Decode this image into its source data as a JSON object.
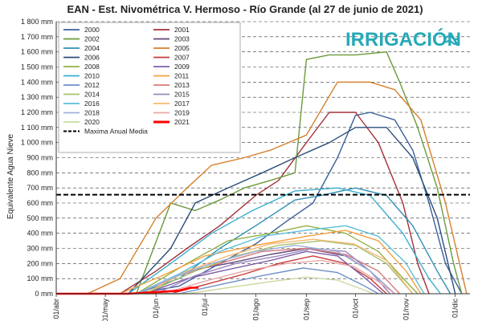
{
  "chart_data": {
    "type": "line",
    "title": "EAN - Est. Nivométrica V. Hermoso - Río Grande (al 27 de junio de 2021)",
    "ylabel": "Equivalente Agua Nieve",
    "xlabel": "",
    "ylim": [
      0,
      1800
    ],
    "xlim": [
      "2021-04-01",
      "2021-12-10"
    ],
    "grid": "horizontal dashed",
    "legend_placement": "top-left",
    "y_ticks": [
      "0 mm",
      "100 mm",
      "200 mm",
      "300 mm",
      "400 mm",
      "500 mm",
      "600 mm",
      "700 mm",
      "800 mm",
      "900 mm",
      "1 000 mm",
      "1 100 mm",
      "1 200 mm",
      "1 300 mm",
      "1 400 mm",
      "1 500 mm",
      "1 600 mm",
      "1 700 mm",
      "1 800 mm"
    ],
    "x_ticks": [
      {
        "label": "01/abr",
        "date": "2021-04-01"
      },
      {
        "label": "01/may",
        "date": "2021-05-01"
      },
      {
        "label": "01/jun",
        "date": "2021-06-01"
      },
      {
        "label": "01/jul",
        "date": "2021-07-01"
      },
      {
        "label": "01/ago",
        "date": "2021-08-01"
      },
      {
        "label": "01/sep",
        "date": "2021-09-01"
      },
      {
        "label": "01/oct",
        "date": "2021-10-01"
      },
      {
        "label": "01/nov",
        "date": "2021-11-01"
      },
      {
        "label": "01/dic",
        "date": "2021-12-01"
      }
    ],
    "mean_max": {
      "name": "Maxima Anual Media",
      "value": 655,
      "color": "#000000"
    },
    "series": [
      {
        "name": "2000",
        "color": "#3b5f9a",
        "points": [
          [
            "2021-04-01",
            0
          ],
          [
            "2021-05-20",
            0
          ],
          [
            "2021-06-15",
            50
          ],
          [
            "2021-07-10",
            200
          ],
          [
            "2021-08-01",
            330
          ],
          [
            "2021-08-20",
            480
          ],
          [
            "2021-09-05",
            600
          ],
          [
            "2021-09-20",
            900
          ],
          [
            "2021-10-01",
            1180
          ],
          [
            "2021-10-10",
            1200
          ],
          [
            "2021-10-25",
            1150
          ],
          [
            "2021-11-05",
            950
          ],
          [
            "2021-11-15",
            600
          ],
          [
            "2021-11-25",
            200
          ],
          [
            "2021-12-05",
            0
          ]
        ]
      },
      {
        "name": "2001",
        "color": "#a3313a",
        "points": [
          [
            "2021-04-01",
            0
          ],
          [
            "2021-05-10",
            0
          ],
          [
            "2021-06-01",
            150
          ],
          [
            "2021-06-20",
            300
          ],
          [
            "2021-07-10",
            450
          ],
          [
            "2021-08-01",
            650
          ],
          [
            "2021-08-15",
            750
          ],
          [
            "2021-09-01",
            1000
          ],
          [
            "2021-09-15",
            1200
          ],
          [
            "2021-10-01",
            1200
          ],
          [
            "2021-10-15",
            1000
          ],
          [
            "2021-10-30",
            600
          ],
          [
            "2021-11-08",
            200
          ],
          [
            "2021-11-15",
            0
          ]
        ]
      },
      {
        "name": "2002",
        "color": "#6c9a3b",
        "points": [
          [
            "2021-04-01",
            0
          ],
          [
            "2021-05-20",
            0
          ],
          [
            "2021-06-10",
            600
          ],
          [
            "2021-06-25",
            550
          ],
          [
            "2021-07-10",
            620
          ],
          [
            "2021-07-25",
            700
          ],
          [
            "2021-08-10",
            750
          ],
          [
            "2021-08-25",
            800
          ],
          [
            "2021-09-01",
            1550
          ],
          [
            "2021-09-15",
            1580
          ],
          [
            "2021-10-01",
            1580
          ],
          [
            "2021-10-20",
            1600
          ],
          [
            "2021-10-28",
            1400
          ],
          [
            "2021-11-08",
            1100
          ],
          [
            "2021-11-20",
            700
          ],
          [
            "2021-11-30",
            200
          ],
          [
            "2021-12-05",
            0
          ]
        ]
      },
      {
        "name": "2003",
        "color": "#62487c",
        "points": [
          [
            "2021-04-01",
            0
          ],
          [
            "2021-05-25",
            0
          ],
          [
            "2021-06-20",
            150
          ],
          [
            "2021-07-15",
            200
          ],
          [
            "2021-08-10",
            260
          ],
          [
            "2021-09-01",
            300
          ],
          [
            "2021-09-25",
            250
          ],
          [
            "2021-10-10",
            150
          ],
          [
            "2021-10-25",
            0
          ]
        ]
      },
      {
        "name": "2004",
        "color": "#2f8fb4",
        "points": [
          [
            "2021-04-01",
            0
          ],
          [
            "2021-05-20",
            0
          ],
          [
            "2021-06-15",
            100
          ],
          [
            "2021-07-10",
            300
          ],
          [
            "2021-08-01",
            450
          ],
          [
            "2021-08-25",
            620
          ],
          [
            "2021-09-10",
            650
          ],
          [
            "2021-10-01",
            700
          ],
          [
            "2021-10-20",
            650
          ],
          [
            "2021-11-05",
            450
          ],
          [
            "2021-11-20",
            150
          ],
          [
            "2021-11-28",
            0
          ]
        ]
      },
      {
        "name": "2005",
        "color": "#d67f2b",
        "points": [
          [
            "2021-04-01",
            0
          ],
          [
            "2021-04-20",
            0
          ],
          [
            "2021-05-10",
            100
          ],
          [
            "2021-06-01",
            500
          ],
          [
            "2021-06-20",
            700
          ],
          [
            "2021-07-05",
            850
          ],
          [
            "2021-07-25",
            900
          ],
          [
            "2021-08-10",
            950
          ],
          [
            "2021-09-01",
            1050
          ],
          [
            "2021-09-20",
            1400
          ],
          [
            "2021-10-10",
            1400
          ],
          [
            "2021-10-25",
            1350
          ],
          [
            "2021-11-10",
            1150
          ],
          [
            "2021-11-25",
            600
          ],
          [
            "2021-12-08",
            0
          ]
        ]
      },
      {
        "name": "2006",
        "color": "#2c4d78",
        "points": [
          [
            "2021-04-01",
            0
          ],
          [
            "2021-05-15",
            0
          ],
          [
            "2021-06-10",
            300
          ],
          [
            "2021-06-25",
            600
          ],
          [
            "2021-07-15",
            700
          ],
          [
            "2021-08-05",
            800
          ],
          [
            "2021-08-25",
            900
          ],
          [
            "2021-09-15",
            1000
          ],
          [
            "2021-10-01",
            1100
          ],
          [
            "2021-10-20",
            1100
          ],
          [
            "2021-11-05",
            900
          ],
          [
            "2021-11-20",
            500
          ],
          [
            "2021-12-01",
            0
          ]
        ]
      },
      {
        "name": "2007",
        "color": "#c83b3b",
        "points": [
          [
            "2021-04-01",
            0
          ],
          [
            "2021-06-10",
            0
          ],
          [
            "2021-07-01",
            60
          ],
          [
            "2021-07-25",
            130
          ],
          [
            "2021-08-15",
            200
          ],
          [
            "2021-09-05",
            250
          ],
          [
            "2021-09-25",
            200
          ],
          [
            "2021-10-10",
            100
          ],
          [
            "2021-10-20",
            0
          ]
        ]
      },
      {
        "name": "2008",
        "color": "#93b044",
        "points": [
          [
            "2021-04-01",
            0
          ],
          [
            "2021-05-20",
            0
          ],
          [
            "2021-06-20",
            200
          ],
          [
            "2021-07-15",
            350
          ],
          [
            "2021-08-10",
            400
          ],
          [
            "2021-09-01",
            450
          ],
          [
            "2021-09-25",
            400
          ],
          [
            "2021-10-15",
            280
          ],
          [
            "2021-11-01",
            80
          ],
          [
            "2021-11-08",
            0
          ]
        ]
      },
      {
        "name": "2009",
        "color": "#7e5ea7",
        "points": [
          [
            "2021-04-01",
            0
          ],
          [
            "2021-05-25",
            0
          ],
          [
            "2021-06-20",
            100
          ],
          [
            "2021-07-15",
            160
          ],
          [
            "2021-08-10",
            220
          ],
          [
            "2021-09-01",
            280
          ],
          [
            "2021-09-20",
            250
          ],
          [
            "2021-10-05",
            120
          ],
          [
            "2021-10-18",
            0
          ]
        ]
      },
      {
        "name": "2010",
        "color": "#3aaed0",
        "points": [
          [
            "2021-04-01",
            0
          ],
          [
            "2021-05-15",
            0
          ],
          [
            "2021-06-10",
            200
          ],
          [
            "2021-07-05",
            400
          ],
          [
            "2021-07-30",
            550
          ],
          [
            "2021-08-25",
            680
          ],
          [
            "2021-09-20",
            700
          ],
          [
            "2021-10-10",
            650
          ],
          [
            "2021-10-30",
            400
          ],
          [
            "2021-11-15",
            100
          ],
          [
            "2021-11-22",
            0
          ]
        ]
      },
      {
        "name": "2011",
        "color": "#f5a03d",
        "points": [
          [
            "2021-04-01",
            0
          ],
          [
            "2021-05-10",
            0
          ],
          [
            "2021-06-05",
            120
          ],
          [
            "2021-07-01",
            250
          ],
          [
            "2021-08-01",
            320
          ],
          [
            "2021-09-01",
            380
          ],
          [
            "2021-09-25",
            420
          ],
          [
            "2021-10-15",
            350
          ],
          [
            "2021-11-01",
            150
          ],
          [
            "2021-11-10",
            0
          ]
        ]
      },
      {
        "name": "2012",
        "color": "#6f8fc7",
        "points": [
          [
            "2021-04-01",
            0
          ],
          [
            "2021-06-15",
            0
          ],
          [
            "2021-07-10",
            60
          ],
          [
            "2021-08-05",
            120
          ],
          [
            "2021-08-30",
            170
          ],
          [
            "2021-09-20",
            140
          ],
          [
            "2021-10-05",
            60
          ],
          [
            "2021-10-15",
            0
          ]
        ]
      },
      {
        "name": "2013",
        "color": "#d77a7a",
        "points": [
          [
            "2021-04-01",
            0
          ],
          [
            "2021-05-20",
            0
          ],
          [
            "2021-06-15",
            120
          ],
          [
            "2021-07-10",
            200
          ],
          [
            "2021-08-05",
            280
          ],
          [
            "2021-09-01",
            300
          ],
          [
            "2021-09-25",
            260
          ],
          [
            "2021-10-15",
            150
          ],
          [
            "2021-10-28",
            0
          ]
        ]
      },
      {
        "name": "2014",
        "color": "#a6c16f",
        "points": [
          [
            "2021-04-01",
            0
          ],
          [
            "2021-05-25",
            0
          ],
          [
            "2021-06-25",
            150
          ],
          [
            "2021-07-20",
            250
          ],
          [
            "2021-08-15",
            320
          ],
          [
            "2021-09-10",
            350
          ],
          [
            "2021-10-01",
            320
          ],
          [
            "2021-10-20",
            200
          ],
          [
            "2021-11-05",
            0
          ]
        ]
      },
      {
        "name": "2015",
        "color": "#9a86bf",
        "points": [
          [
            "2021-04-01",
            0
          ],
          [
            "2021-06-01",
            0
          ],
          [
            "2021-06-25",
            120
          ],
          [
            "2021-07-20",
            200
          ],
          [
            "2021-08-15",
            250
          ],
          [
            "2021-09-05",
            300
          ],
          [
            "2021-09-25",
            280
          ],
          [
            "2021-10-10",
            150
          ],
          [
            "2021-10-22",
            0
          ]
        ]
      },
      {
        "name": "2016",
        "color": "#5bbfd8",
        "points": [
          [
            "2021-04-01",
            0
          ],
          [
            "2021-05-20",
            0
          ],
          [
            "2021-06-15",
            130
          ],
          [
            "2021-07-10",
            280
          ],
          [
            "2021-08-05",
            380
          ],
          [
            "2021-09-01",
            420
          ],
          [
            "2021-09-25",
            450
          ],
          [
            "2021-10-15",
            380
          ],
          [
            "2021-11-01",
            200
          ],
          [
            "2021-11-12",
            0
          ]
        ]
      },
      {
        "name": "2017",
        "color": "#f7b873",
        "points": [
          [
            "2021-04-01",
            0
          ],
          [
            "2021-05-25",
            0
          ],
          [
            "2021-06-20",
            150
          ],
          [
            "2021-07-15",
            250
          ],
          [
            "2021-08-10",
            330
          ],
          [
            "2021-09-05",
            360
          ],
          [
            "2021-09-30",
            330
          ],
          [
            "2021-10-20",
            220
          ],
          [
            "2021-11-05",
            0
          ]
        ]
      },
      {
        "name": "2018",
        "color": "#9db1d9",
        "points": [
          [
            "2021-04-01",
            0
          ],
          [
            "2021-05-20",
            0
          ],
          [
            "2021-06-10",
            100
          ],
          [
            "2021-07-05",
            200
          ],
          [
            "2021-08-01",
            280
          ],
          [
            "2021-08-25",
            320
          ],
          [
            "2021-09-20",
            280
          ],
          [
            "2021-10-10",
            150
          ],
          [
            "2021-10-25",
            0
          ]
        ]
      },
      {
        "name": "2019",
        "color": "#e7a7a7",
        "points": [
          [
            "2021-04-01",
            0
          ],
          [
            "2021-06-05",
            0
          ],
          [
            "2021-06-30",
            80
          ],
          [
            "2021-07-25",
            150
          ],
          [
            "2021-08-20",
            200
          ],
          [
            "2021-09-10",
            220
          ],
          [
            "2021-09-30",
            180
          ],
          [
            "2021-10-15",
            80
          ],
          [
            "2021-10-25",
            0
          ]
        ]
      },
      {
        "name": "2020",
        "color": "#c9d9a2",
        "points": [
          [
            "2021-04-01",
            0
          ],
          [
            "2021-06-20",
            0
          ],
          [
            "2021-07-15",
            40
          ],
          [
            "2021-08-10",
            80
          ],
          [
            "2021-09-01",
            110
          ],
          [
            "2021-09-20",
            90
          ],
          [
            "2021-10-05",
            30
          ],
          [
            "2021-10-12",
            0
          ]
        ]
      },
      {
        "name": "2021",
        "color": "#ff0000",
        "points": [
          [
            "2021-04-01",
            0
          ],
          [
            "2021-05-15",
            0
          ],
          [
            "2021-06-01",
            10
          ],
          [
            "2021-06-15",
            20
          ],
          [
            "2021-06-22",
            40
          ],
          [
            "2021-06-27",
            40
          ]
        ]
      }
    ]
  },
  "logo": {
    "text": "IRRIGACIÓN",
    "color": "#27a9b8"
  }
}
